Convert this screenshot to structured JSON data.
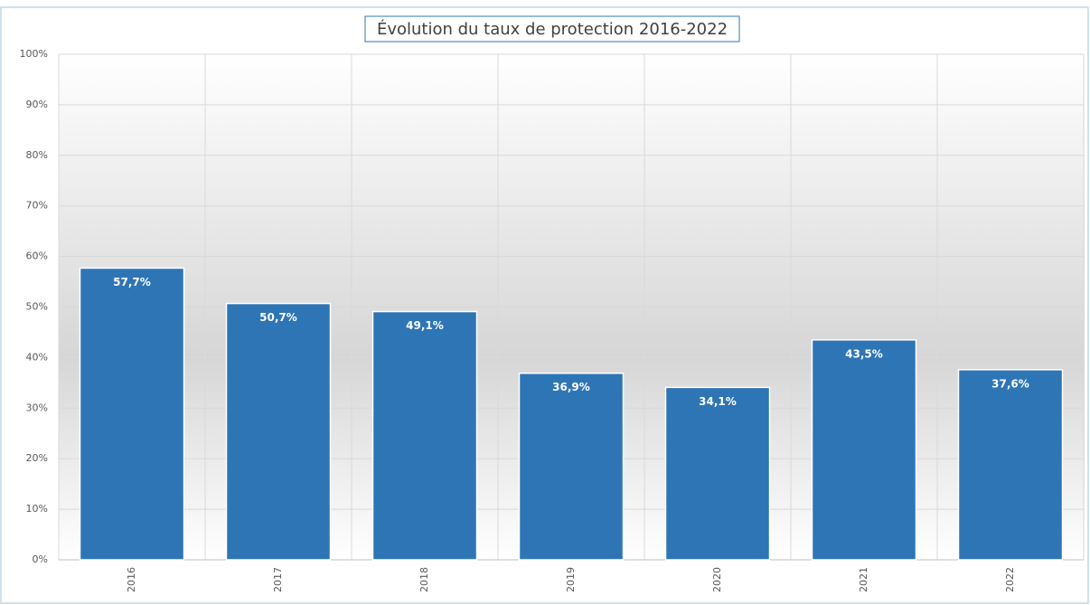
{
  "chart_data": {
    "type": "bar",
    "title": "Évolution du taux de protection 2016-2022",
    "categories": [
      "2016",
      "2017",
      "2018",
      "2019",
      "2020",
      "2021",
      "2022"
    ],
    "values": [
      57.7,
      50.7,
      49.1,
      36.9,
      34.1,
      43.5,
      37.6
    ],
    "value_labels": [
      "57,7%",
      "50,7%",
      "49,1%",
      "36,9%",
      "34,1%",
      "43,5%",
      "37,6%"
    ],
    "color": "#2e75b6",
    "ylim": [
      0,
      100
    ],
    "yticks": [
      {
        "value": 0,
        "label": "0%"
      },
      {
        "value": 10,
        "label": "10%"
      },
      {
        "value": 20,
        "label": "20%"
      },
      {
        "value": 30,
        "label": "30%"
      },
      {
        "value": 40,
        "label": "40%"
      },
      {
        "value": 50,
        "label": "50%"
      },
      {
        "value": 60,
        "label": "60%"
      },
      {
        "value": 70,
        "label": "70%"
      },
      {
        "value": 80,
        "label": "80%"
      },
      {
        "value": 90,
        "label": "90%"
      },
      {
        "value": 100,
        "label": "100%"
      }
    ],
    "grid": true
  }
}
